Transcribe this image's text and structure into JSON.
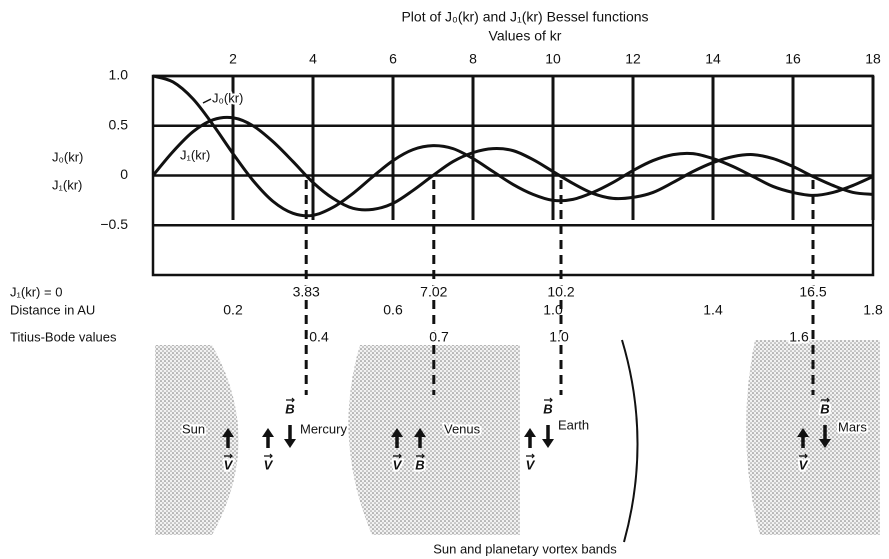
{
  "chart_data": {
    "type": "line",
    "title": "Plot of J₀(kr) and J₁(kr) Bessel functions",
    "subtitle": "Values of kr",
    "y_label": [
      "J₀(kr)",
      "J₁(kr)"
    ],
    "x": [
      0,
      0.5,
      1,
      1.5,
      2,
      2.5,
      3,
      3.5,
      4,
      4.5,
      5,
      5.5,
      6,
      6.5,
      7,
      7.5,
      8,
      8.5,
      9,
      9.5,
      10,
      10.5,
      11,
      11.5,
      12,
      12.5,
      13,
      13.5,
      14,
      14.5,
      15,
      15.5,
      16,
      16.5,
      17,
      17.5,
      18
    ],
    "series": [
      {
        "name": "J₀(kr)",
        "color": "#111111",
        "values": [
          1,
          0.94,
          0.77,
          0.51,
          0.22,
          -0.05,
          -0.26,
          -0.38,
          -0.4,
          -0.32,
          -0.18,
          -0.01,
          0.15,
          0.26,
          0.3,
          0.27,
          0.17,
          0.04,
          -0.09,
          -0.19,
          -0.25,
          -0.24,
          -0.17,
          -0.07,
          0.05,
          0.15,
          0.21,
          0.22,
          0.17,
          0.09,
          -0.01,
          -0.11,
          -0.17,
          -0.2,
          -0.17,
          -0.1,
          -0.01
        ]
      },
      {
        "name": "J₁(kr)",
        "color": "#111111",
        "values": [
          0,
          0.24,
          0.44,
          0.56,
          0.58,
          0.5,
          0.34,
          0.14,
          -0.07,
          -0.23,
          -0.33,
          -0.34,
          -0.28,
          -0.15,
          0,
          0.14,
          0.23,
          0.27,
          0.25,
          0.16,
          0.04,
          -0.08,
          -0.18,
          -0.23,
          -0.22,
          -0.17,
          -0.07,
          0.04,
          0.13,
          0.19,
          0.21,
          0.17,
          0.09,
          -0.01,
          -0.1,
          -0.17,
          -0.19
        ]
      }
    ],
    "xlim": [
      0,
      18
    ],
    "xticks": [
      2,
      4,
      6,
      8,
      10,
      12,
      14,
      16,
      18
    ],
    "ylim": [
      -1,
      1
    ],
    "yticks": [
      {
        "value": 1,
        "label": "1.0"
      },
      0.5,
      0,
      {
        "value": -0.5,
        "label": "−0.5"
      }
    ],
    "grid": true,
    "zeros": {
      "label": "J₁(kr) = 0",
      "values": [
        3.83,
        7.02,
        10.2,
        16.5
      ]
    },
    "au_lim": [
      0,
      1.8
    ],
    "distance_au": {
      "label": "Distance in AU",
      "values": [
        0.2,
        0.6,
        {
          "value": 1,
          "label": "1.0"
        },
        1.4,
        1.8
      ]
    },
    "titius_bode": {
      "label": "Titius-Bode values",
      "values": [
        0.4,
        0.7,
        {
          "value": 1,
          "label": "1.0"
        },
        1.6
      ]
    }
  },
  "diagram": {
    "caption": "Sun and planetary vortex bands",
    "bodies": [
      "Sun",
      "Mercury",
      "Venus",
      "Earth",
      "Mars"
    ],
    "velocity": "V",
    "field": "B"
  }
}
